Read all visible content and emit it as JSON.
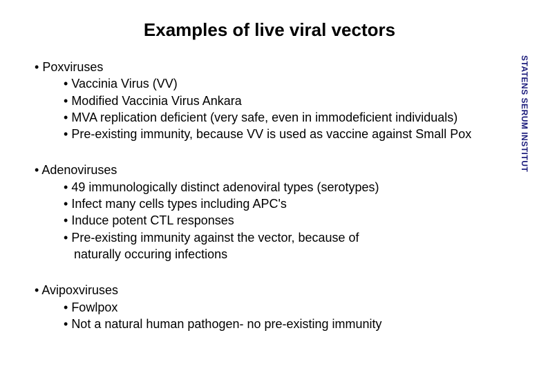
{
  "slide": {
    "title": "Examples of live viral vectors",
    "sidebar_label": "STATENS SERUM INSTITUT",
    "title_fontsize": 26,
    "body_fontsize": 18,
    "sidebar_fontsize": 12,
    "text_color": "#000000",
    "sidebar_color": "#1a1a7a",
    "background_color": "#ffffff"
  },
  "groups": [
    {
      "heading": "Poxviruses",
      "items": [
        {
          "text": "Vaccinia Virus (VV)"
        },
        {
          "text": "Modified Vaccinia Virus Ankara"
        },
        {
          "text": "MVA replication deficient (very safe, even in immodeficient individuals)"
        },
        {
          "text": "Pre-existing immunity, because VV is used as vaccine against Small Pox"
        }
      ]
    },
    {
      "heading": "Adenoviruses",
      "items": [
        {
          "text": "49 immunologically distinct adenoviral types (serotypes)"
        },
        {
          "text": "Infect many cells types including APC's"
        },
        {
          "text": "Induce potent CTL responses"
        },
        {
          "text": "Pre-existing immunity against the vector, because of",
          "cont": "naturally occuring infections"
        }
      ]
    },
    {
      "heading": "Avipoxviruses",
      "items": [
        {
          "text": "Fowlpox"
        },
        {
          "text": "Not a natural human pathogen- no pre-existing immunity"
        }
      ]
    }
  ]
}
